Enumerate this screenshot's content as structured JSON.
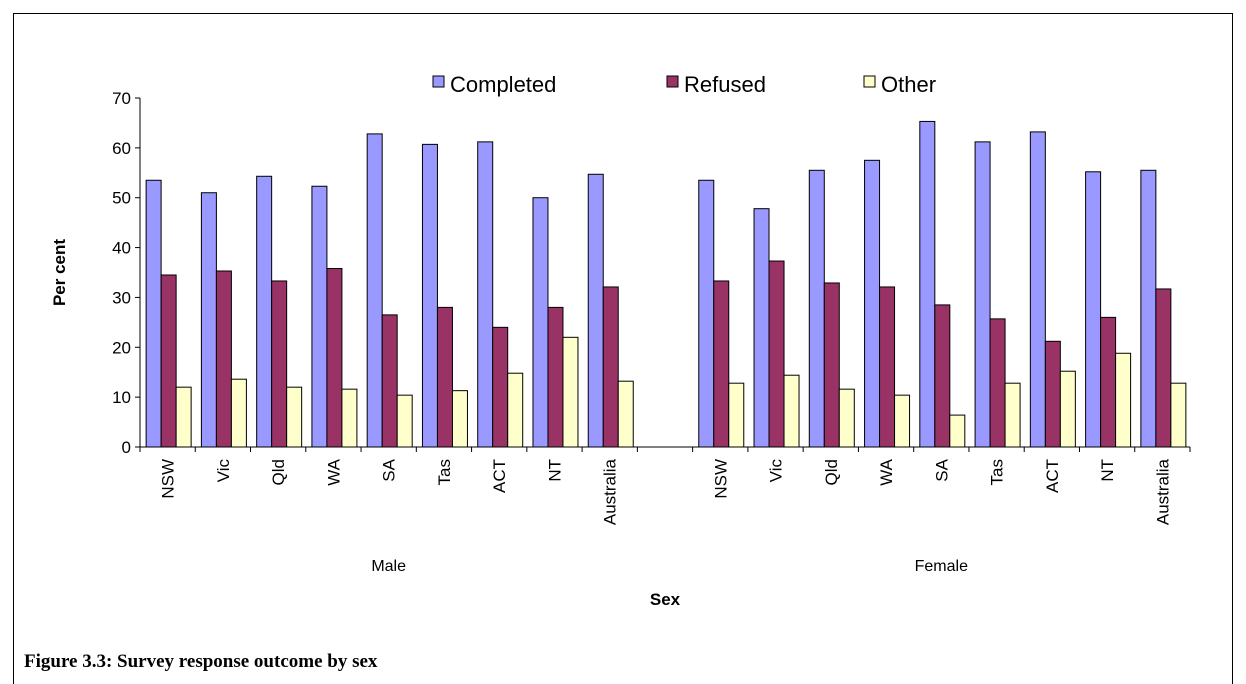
{
  "chart_data": {
    "type": "bar",
    "ylabel": "Per cent",
    "xlabel": "Sex",
    "ylim": [
      0,
      70
    ],
    "yticks": [
      0,
      10,
      20,
      30,
      40,
      50,
      60,
      70
    ],
    "groups": [
      "Male",
      "Female"
    ],
    "categories": [
      "NSW",
      "Vic",
      "Qld",
      "WA",
      "SA",
      "Tas",
      "ACT",
      "NT",
      "Australia"
    ],
    "series": [
      {
        "name": "Completed",
        "color": "#9999ff",
        "values": {
          "Male": [
            53.5,
            51,
            54.3,
            52.3,
            62.8,
            60.7,
            61.2,
            50,
            54.7
          ],
          "Female": [
            53.5,
            47.8,
            55.5,
            57.5,
            65.3,
            61.2,
            63.2,
            55.2,
            55.5
          ]
        }
      },
      {
        "name": "Refused",
        "color": "#993366",
        "values": {
          "Male": [
            34.5,
            35.3,
            33.3,
            35.8,
            26.5,
            28,
            24,
            28,
            32.1
          ],
          "Female": [
            33.3,
            37.3,
            32.9,
            32.1,
            28.5,
            25.7,
            21.2,
            26,
            31.7
          ]
        }
      },
      {
        "name": "Other",
        "color": "#ffffcc",
        "values": {
          "Male": [
            12,
            13.6,
            12,
            11.6,
            10.4,
            11.3,
            14.8,
            22,
            13.2
          ],
          "Female": [
            12.8,
            14.4,
            11.6,
            10.4,
            6.4,
            12.8,
            15.2,
            18.8,
            12.8
          ]
        }
      }
    ],
    "legend_position": "top",
    "grid": false
  },
  "caption": "Figure 3.3: Survey response outcome by sex"
}
